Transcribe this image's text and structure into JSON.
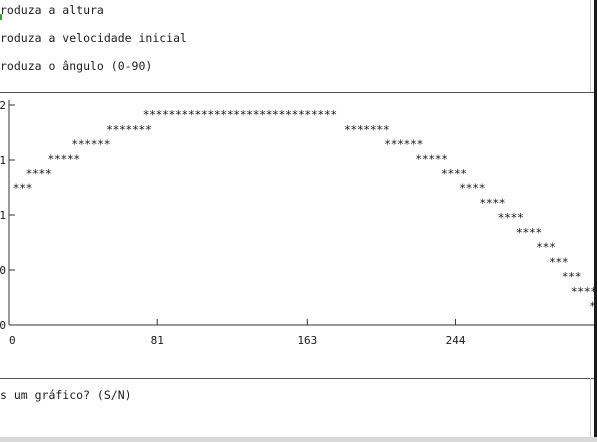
{
  "terminal": {
    "prompt_height": "roduza a altura",
    "prompt_velocity": "roduza a velocidade inicial",
    "prompt_angle": "roduza o ângulo (0-90)",
    "question": "s um gráfico? (S/N)"
  },
  "chart_data": {
    "type": "scatter",
    "title": "",
    "xlabel": "",
    "ylabel": "",
    "marker": "*",
    "marker_color": "#1a1a1a",
    "axis_color": "#333333",
    "x_ticks": [
      "0",
      "81",
      "163",
      "244"
    ],
    "x_tick_values": [
      0,
      81,
      163,
      244
    ],
    "y_ticks": [
      "0",
      "0",
      "1",
      "1",
      "2"
    ],
    "y_tick_values": [
      0,
      1,
      2,
      3,
      4
    ],
    "xlim": [
      0,
      323
    ],
    "ylim": [
      0,
      4.2
    ],
    "rows": [
      {
        "y": 4.0,
        "text": "******************************",
        "x_start": 73
      },
      {
        "y": 3.72,
        "text": "*******",
        "x_start": 53
      },
      {
        "y": 3.72,
        "text": "*******",
        "x_start": 183
      },
      {
        "y": 3.44,
        "text": "******",
        "x_start": 34
      },
      {
        "y": 3.44,
        "text": "******",
        "x_start": 205
      },
      {
        "y": 3.16,
        "text": "*****",
        "x_start": 21
      },
      {
        "y": 3.16,
        "text": "*****",
        "x_start": 222
      },
      {
        "y": 2.88,
        "text": "****",
        "x_start": 9
      },
      {
        "y": 2.88,
        "text": "****",
        "x_start": 236
      },
      {
        "y": 2.6,
        "text": "***",
        "x_start": 2
      },
      {
        "y": 2.6,
        "text": "****",
        "x_start": 246
      },
      {
        "y": 2.32,
        "text": "****",
        "x_start": 257
      },
      {
        "y": 2.04,
        "text": "****",
        "x_start": 267
      },
      {
        "y": 1.76,
        "text": "****",
        "x_start": 277
      },
      {
        "y": 1.48,
        "text": "***",
        "x_start": 288
      },
      {
        "y": 1.2,
        "text": "***",
        "x_start": 295
      },
      {
        "y": 0.92,
        "text": "***",
        "x_start": 302
      },
      {
        "y": 0.64,
        "text": "****",
        "x_start": 307
      },
      {
        "y": 0.36,
        "text": "**",
        "x_start": 317
      }
    ]
  }
}
